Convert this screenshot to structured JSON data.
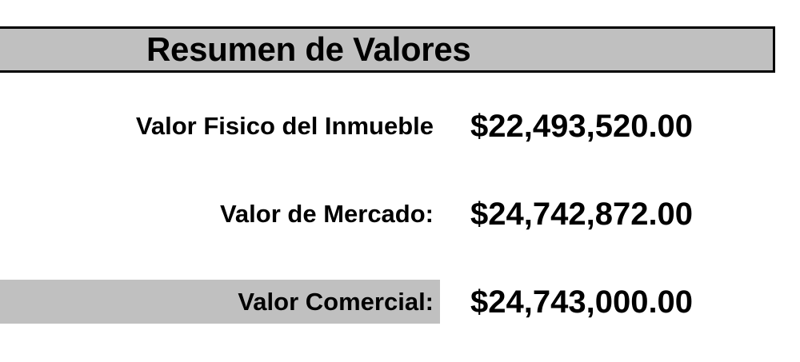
{
  "title": "Resumen de Valores",
  "rows": [
    {
      "label": "Valor Fisico del Inmueble",
      "value": "$22,493,520.00"
    },
    {
      "label": "Valor de Mercado:",
      "value": "$24,742,872.00"
    },
    {
      "label": "Valor Comercial:",
      "value": "$24,743,000.00"
    }
  ],
  "colors": {
    "header_fill": "#c0c0c0",
    "highlight_fill": "#c0c0c0",
    "text": "#000000"
  }
}
